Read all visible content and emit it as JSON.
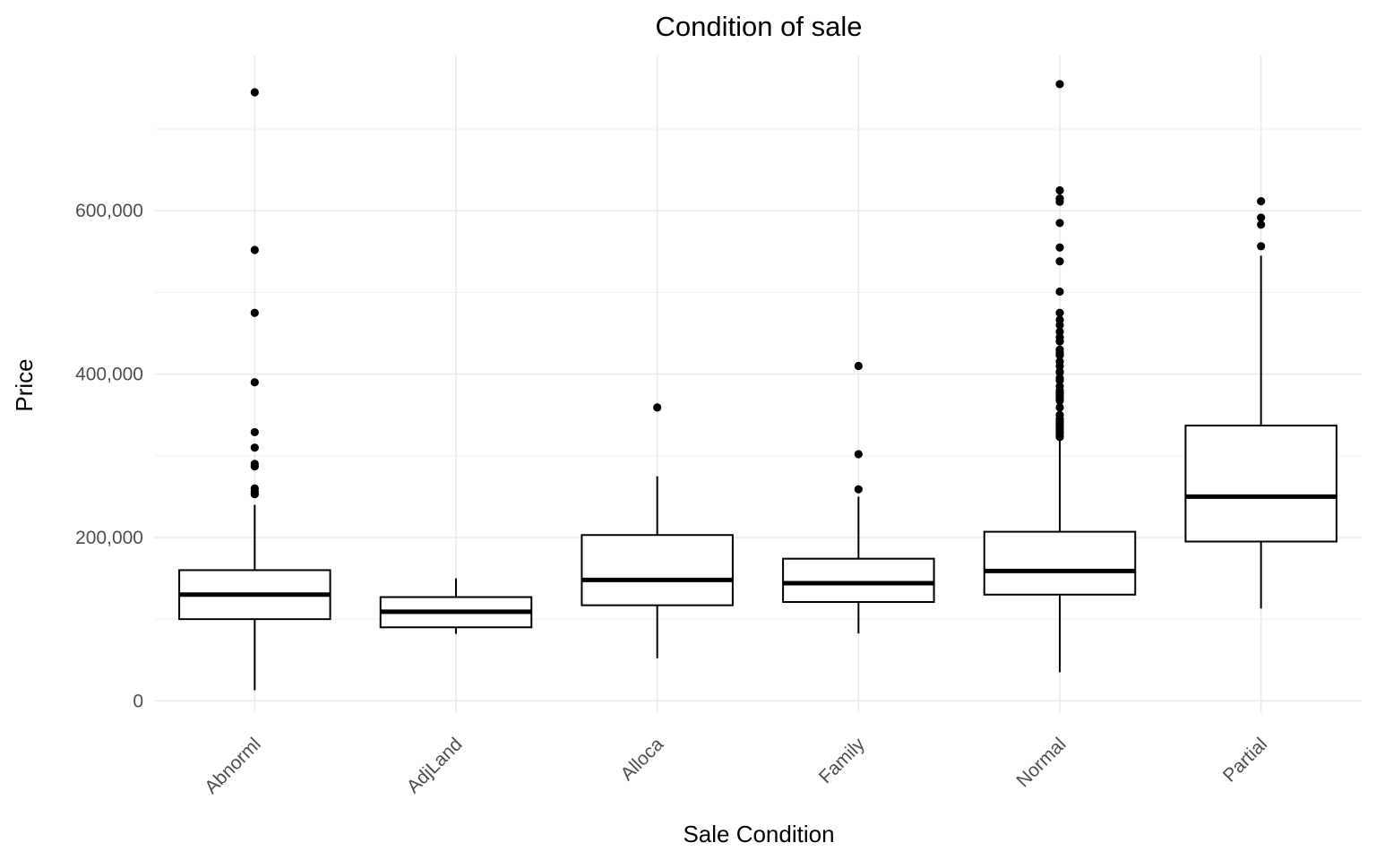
{
  "chart_data": {
    "type": "boxplot",
    "title": "Condition of sale",
    "xlabel": "Sale Condition",
    "ylabel": "Price",
    "ylim": [
      -15000,
      790000
    ],
    "y_ticks": [
      0,
      200000,
      400000,
      600000
    ],
    "y_tick_labels": [
      "0",
      "200,000",
      "400,000",
      "600,000"
    ],
    "y_minor_ticks": [
      100000,
      300000,
      500000,
      700000
    ],
    "grid": true,
    "legend": "none",
    "categories": [
      "Abnorml",
      "AdjLand",
      "Alloca",
      "Family",
      "Normal",
      "Partial"
    ],
    "boxes": [
      {
        "category": "Abnorml",
        "whisker_low": 13000,
        "q1": 100000,
        "median": 130000,
        "q3": 160000,
        "whisker_high": 240000,
        "outliers": [
          745000,
          552000,
          475000,
          390000,
          328900,
          310000,
          290000,
          287000,
          260000,
          256000,
          253000
        ]
      },
      {
        "category": "AdjLand",
        "whisker_low": 82000,
        "q1": 90000,
        "median": 109000,
        "q3": 127000,
        "whisker_high": 150000,
        "outliers": []
      },
      {
        "category": "Alloca",
        "whisker_low": 52000,
        "q1": 117000,
        "median": 148000,
        "q3": 203000,
        "whisker_high": 275000,
        "outliers": [
          359100
        ]
      },
      {
        "category": "Family",
        "whisker_low": 82500,
        "q1": 121000,
        "median": 144000,
        "q3": 174000,
        "whisker_high": 250000,
        "outliers": [
          410000,
          302000,
          259000
        ]
      },
      {
        "category": "Normal",
        "whisker_low": 35000,
        "q1": 130000,
        "median": 159000,
        "q3": 207000,
        "whisker_high": 320000,
        "outliers": [
          755000,
          625000,
          615000,
          611000,
          585000,
          555000,
          538000,
          501000,
          475000,
          466500,
          460000,
          451950,
          445000,
          440000,
          430000,
          426000,
          424870,
          423000,
          415298,
          410000,
          403000,
          402000,
          395000,
          392500,
          385000,
          380000,
          377500,
          375000,
          372500,
          369900,
          367294,
          359100,
          350000,
          345000,
          342643,
          340000,
          337500,
          335000,
          333168,
          330000,
          328000,
          325000,
          323000
        ]
      },
      {
        "category": "Partial",
        "whisker_low": 113000,
        "q1": 195000,
        "median": 250000,
        "q3": 337000,
        "whisker_high": 545000,
        "outliers": [
          611657,
          591587,
          582933,
          556581
        ]
      }
    ]
  }
}
